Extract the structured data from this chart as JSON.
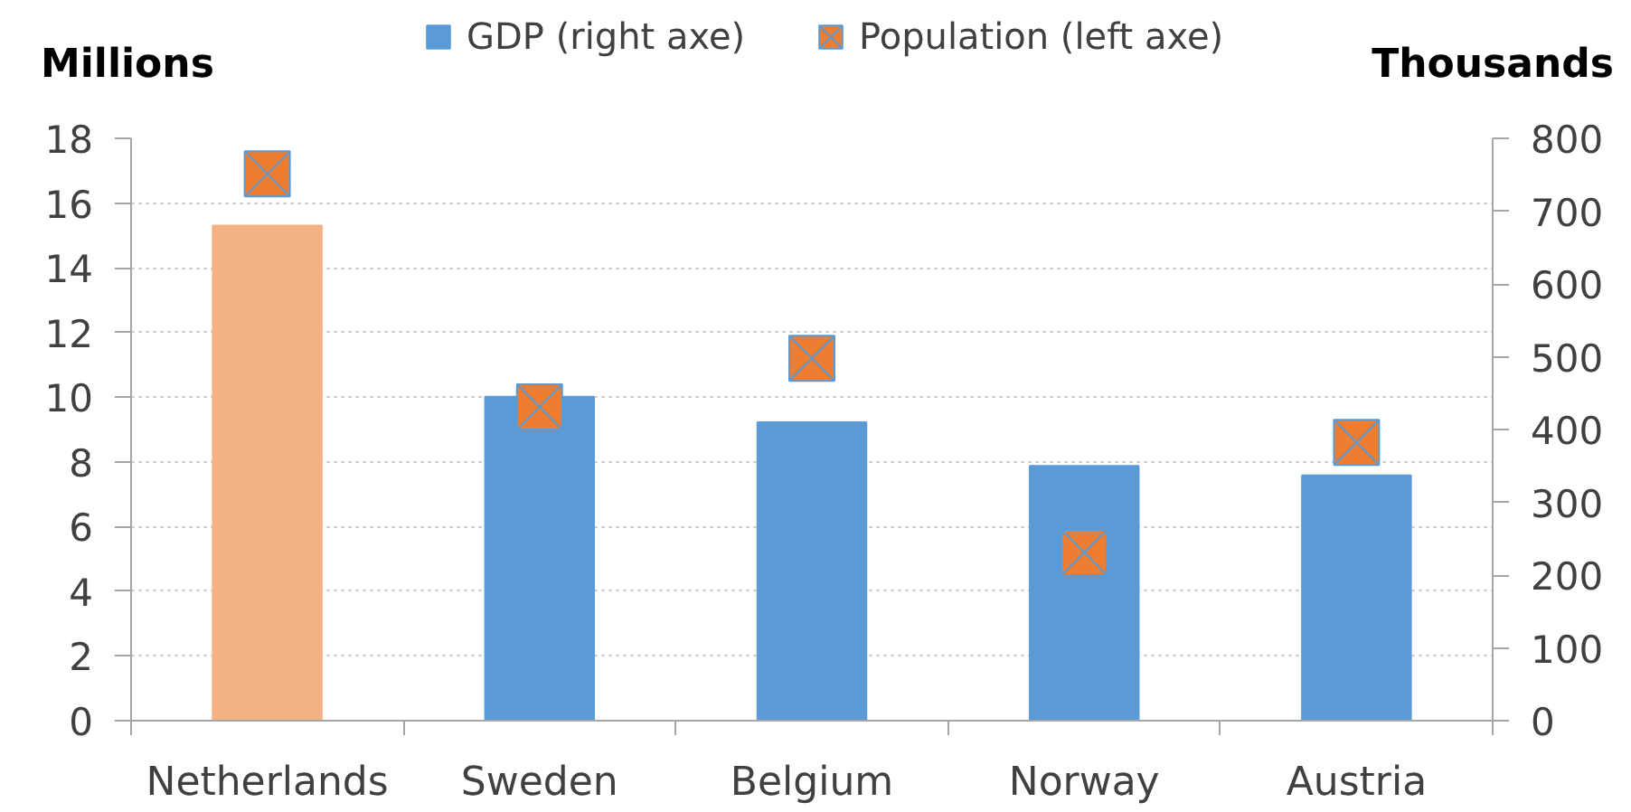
{
  "chart_data": {
    "type": "bar",
    "categories": [
      "Netherlands",
      "Sweden",
      "Belgium",
      "Norway",
      "Austria"
    ],
    "ylabel": "Millions",
    "y2label": "Thousands",
    "ylim": [
      0,
      18
    ],
    "yticks": [
      0,
      2,
      4,
      6,
      8,
      10,
      12,
      14,
      16,
      18
    ],
    "y2lim": [
      0,
      800
    ],
    "y2ticks": [
      0,
      100,
      200,
      300,
      400,
      500,
      600,
      700,
      800
    ],
    "grid": "y",
    "legend": "top",
    "series": [
      {
        "name": "GDP (right axe)",
        "axis": "y2",
        "color": "#5b9bd5",
        "colors": [
          "#f4b183",
          "#5b9bd5",
          "#5b9bd5",
          "#5b9bd5",
          "#5b9bd5"
        ],
        "values": [
          680,
          445,
          410,
          350,
          337
        ]
      },
      {
        "name": "Population (left axe)",
        "type": "scatter",
        "color": "#ed7d31",
        "marker": "square",
        "values": [
          16.9,
          9.7,
          11.2,
          5.2,
          8.6
        ]
      }
    ]
  }
}
